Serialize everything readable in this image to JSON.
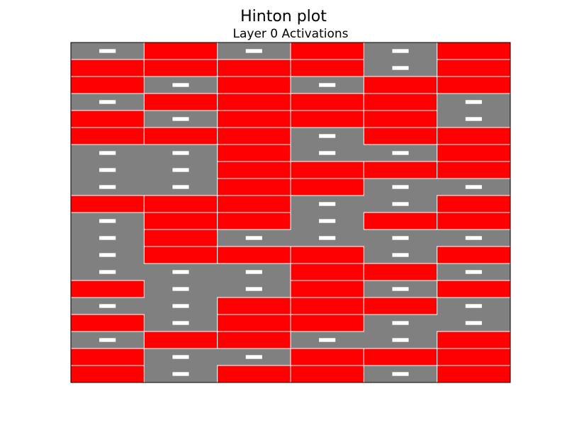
{
  "figure": {
    "suptitle": "Hinton plot",
    "title": "Layer 0 Activations"
  },
  "chart_data": {
    "type": "hinton",
    "title": "Hinton plot",
    "subtitle": "Layer 0 Activations",
    "n_rows": 20,
    "n_cols": 6,
    "grid": false,
    "colors": {
      "positive": "#ff0000",
      "negative": "#000000",
      "background": "#808080",
      "edge": "#ffffff"
    },
    "weights": [
      [
        -0.05,
        1,
        -0.05,
        1,
        -0.05,
        1
      ],
      [
        1,
        1,
        1,
        1,
        -0.05,
        1
      ],
      [
        1,
        -0.05,
        1,
        -0.05,
        1,
        1
      ],
      [
        -0.05,
        1,
        1,
        1,
        1,
        -0.05
      ],
      [
        1,
        -0.05,
        1,
        1,
        1,
        -0.05
      ],
      [
        1,
        1,
        1,
        -0.05,
        1,
        1
      ],
      [
        -0.05,
        -0.05,
        1,
        -0.05,
        -0.05,
        1
      ],
      [
        -0.05,
        -0.05,
        1,
        1,
        1,
        1
      ],
      [
        -0.05,
        -0.05,
        1,
        1,
        -0.05,
        -0.05
      ],
      [
        1,
        1,
        1,
        -0.05,
        -0.05,
        1
      ],
      [
        -0.05,
        1,
        1,
        -0.05,
        1,
        1
      ],
      [
        -0.05,
        1,
        -0.05,
        -0.05,
        -0.05,
        -0.05
      ],
      [
        -0.05,
        1,
        1,
        1,
        -0.05,
        1
      ],
      [
        -0.05,
        -0.05,
        -0.05,
        1,
        1,
        -0.05
      ],
      [
        1,
        -0.05,
        -0.05,
        1,
        -0.05,
        1
      ],
      [
        -0.05,
        -0.05,
        1,
        1,
        1,
        -0.05
      ],
      [
        1,
        -0.05,
        1,
        1,
        -0.05,
        -0.05
      ],
      [
        -0.05,
        1,
        1,
        -0.05,
        -0.05,
        1
      ],
      [
        1,
        -0.05,
        -0.05,
        1,
        1,
        1
      ],
      [
        1,
        -0.05,
        1,
        1,
        -0.05,
        1
      ]
    ]
  }
}
